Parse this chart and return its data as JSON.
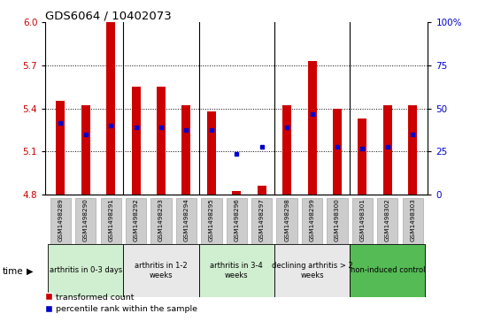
{
  "title": "GDS6064 / 10402073",
  "samples": [
    "GSM1498289",
    "GSM1498290",
    "GSM1498291",
    "GSM1498292",
    "GSM1498293",
    "GSM1498294",
    "GSM1498295",
    "GSM1498296",
    "GSM1498297",
    "GSM1498298",
    "GSM1498299",
    "GSM1498300",
    "GSM1498301",
    "GSM1498302",
    "GSM1498303"
  ],
  "red_values": [
    5.45,
    5.42,
    6.0,
    5.55,
    5.55,
    5.42,
    5.38,
    4.82,
    4.86,
    5.42,
    5.73,
    5.4,
    5.33,
    5.42,
    5.42
  ],
  "blue_values": [
    5.3,
    5.22,
    5.28,
    5.27,
    5.27,
    5.25,
    5.25,
    5.08,
    5.13,
    5.27,
    5.36,
    5.13,
    5.12,
    5.13,
    5.22
  ],
  "ylim_left": [
    4.8,
    6.0
  ],
  "ylim_right": [
    0,
    100
  ],
  "yticks_left": [
    4.8,
    5.1,
    5.4,
    5.7,
    6.0
  ],
  "yticks_right": [
    0,
    25,
    50,
    75,
    100
  ],
  "ytick_labels_right": [
    "0",
    "25",
    "50",
    "75",
    "100%"
  ],
  "groups": [
    {
      "label": "arthritis in 0-3 days",
      "start": 0,
      "end": 3,
      "color": "#d0eed0"
    },
    {
      "label": "arthritis in 1-2\nweeks",
      "start": 3,
      "end": 6,
      "color": "#e8e8e8"
    },
    {
      "label": "arthritis in 3-4\nweeks",
      "start": 6,
      "end": 9,
      "color": "#d0eed0"
    },
    {
      "label": "declining arthritis > 2\nweeks",
      "start": 9,
      "end": 12,
      "color": "#e8e8e8"
    },
    {
      "label": "non-induced control",
      "start": 12,
      "end": 15,
      "color": "#55bb55"
    }
  ],
  "bar_color": "#cc0000",
  "dot_color": "#0000cc",
  "bar_width": 0.35,
  "base": 4.8,
  "grid_yticks": [
    5.1,
    5.4,
    5.7
  ],
  "group_separators": [
    2.5,
    5.5,
    8.5,
    11.5
  ],
  "legend_red": "transformed count",
  "legend_blue": "percentile rank within the sample",
  "time_label": "time",
  "sample_box_color": "#cccccc",
  "sample_box_edgecolor": "#aaaaaa"
}
